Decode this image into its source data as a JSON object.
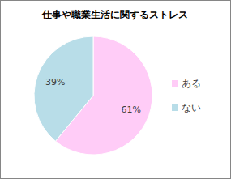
{
  "chart_data": {
    "type": "pie",
    "title": "仕事や職業生活に関するストレス",
    "categories": [
      "ある",
      "ない"
    ],
    "values": [
      61,
      39
    ],
    "value_labels": [
      "61%",
      "39%"
    ],
    "colors": [
      "#ffccf7",
      "#b8dde8"
    ],
    "data_labels": true,
    "legend": "right"
  }
}
